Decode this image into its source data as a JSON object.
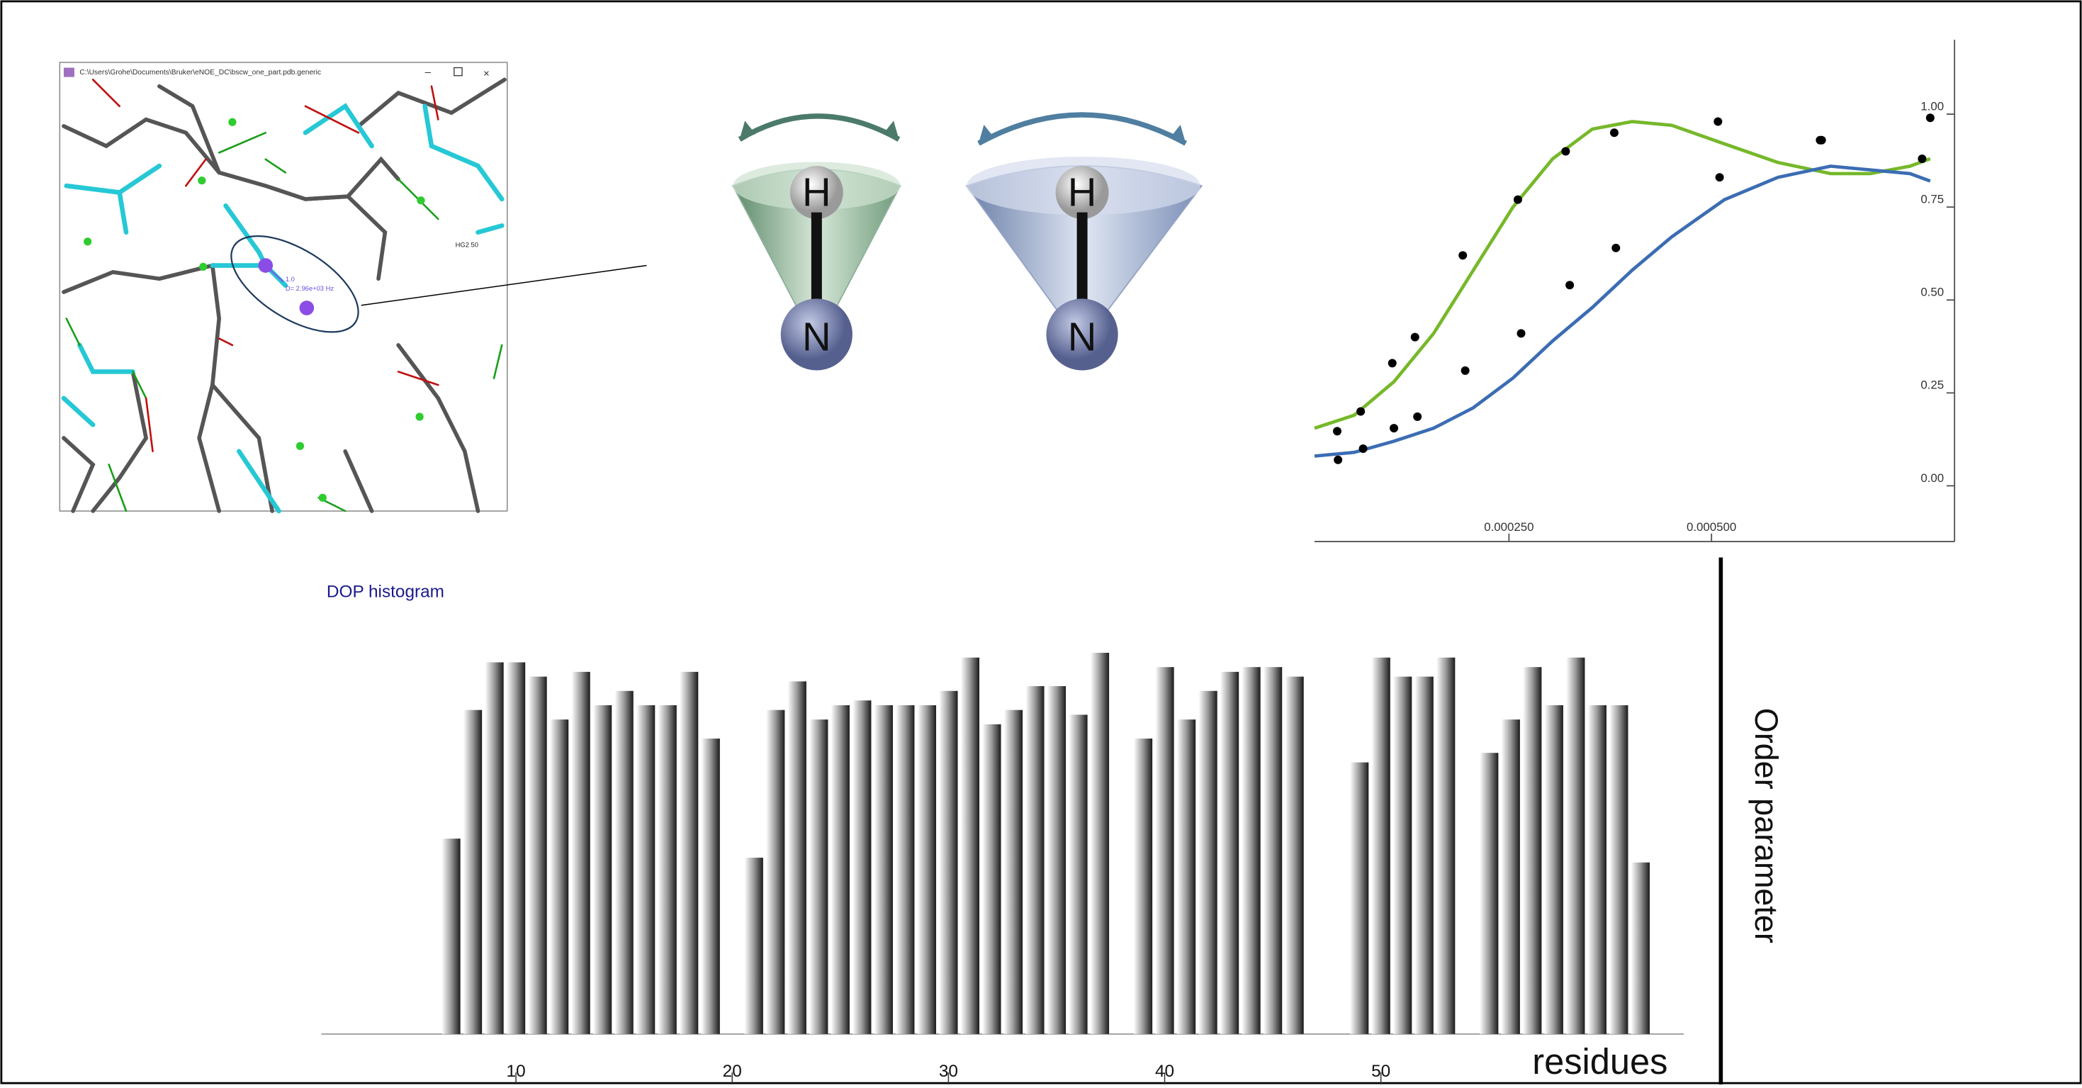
{
  "window": {
    "title": "C:\\Users\\Grohe\\Documents\\Bruker\\eNOE_DC\\bscw_one_part.pdb.generic",
    "labels": [
      "1.0",
      "D= 2.96e+03 Hz",
      "HG2 50"
    ]
  },
  "cones": [
    {
      "top": "H",
      "bottom": "N"
    },
    {
      "top": "H",
      "bottom": "N"
    }
  ],
  "chart_data": [
    {
      "type": "scatter",
      "xlim": [
        1e-05,
        0.0008
      ],
      "ylim": [
        -0.15,
        1.2
      ],
      "xticks": [
        {
          "value": 0.00025,
          "label": "0.000250"
        },
        {
          "value": 0.0005,
          "label": "0.000500"
        }
      ],
      "yticks": [
        {
          "value": 0,
          "label": "0.00"
        },
        {
          "value": 0.25,
          "label": "0.25"
        },
        {
          "value": 0.5,
          "label": "0.50"
        },
        {
          "value": 0.75,
          "label": "0.75"
        },
        {
          "value": 1,
          "label": "1.00"
        }
      ],
      "series": [
        {
          "color": "#000000",
          "x": [
            3.8e-05,
            6.7e-05,
            0.000106,
            0.000134,
            0.000193,
            0.000261,
            0.00032,
            0.00038,
            0.000508,
            0.000634,
            0.00077
          ],
          "values": [
            0.147,
            0.2,
            0.33,
            0.4,
            0.62,
            0.77,
            0.9,
            0.95,
            0.98,
            0.93,
            0.99
          ]
        },
        {
          "color": "#000000",
          "x": [
            3.9e-05,
            7e-05,
            0.000108,
            0.000137,
            0.000196,
            0.000265,
            0.000325,
            0.000382,
            0.00051,
            0.000636,
            0.00076
          ],
          "values": [
            0.07,
            0.1,
            0.155,
            0.186,
            0.31,
            0.41,
            0.54,
            0.64,
            0.83,
            0.93,
            0.88
          ]
        }
      ],
      "lines": [
        {
          "color": "#76b82a",
          "x": [
            1e-05,
            5.9e-05,
            0.000108,
            0.000157,
            0.000206,
            0.000255,
            0.000304,
            0.000353,
            0.000402,
            0.000451,
            0.000516,
            0.000582,
            0.000647,
            0.000696,
            0.000745,
            0.00077
          ],
          "values": [
            0.155,
            0.19,
            0.28,
            0.41,
            0.58,
            0.75,
            0.88,
            0.96,
            0.98,
            0.97,
            0.92,
            0.87,
            0.84,
            0.84,
            0.86,
            0.88
          ]
        },
        {
          "color": "#3b6db3",
          "x": [
            1e-05,
            5.9e-05,
            0.000108,
            0.000157,
            0.000206,
            0.000255,
            0.000304,
            0.000353,
            0.000402,
            0.000451,
            0.000516,
            0.000582,
            0.000647,
            0.000696,
            0.000745,
            0.00077
          ],
          "values": [
            0.08,
            0.09,
            0.12,
            0.155,
            0.21,
            0.29,
            0.39,
            0.48,
            0.58,
            0.67,
            0.77,
            0.83,
            0.86,
            0.85,
            0.84,
            0.82
          ]
        }
      ]
    },
    {
      "type": "bar",
      "title": "DOP histogram",
      "x_label": "residues",
      "y_label": "Order parameter",
      "xlim": [
        1,
        64
      ],
      "ylim": [
        0,
        1
      ],
      "xticks": [
        10,
        20,
        30,
        40,
        50
      ],
      "x": [
        7,
        8,
        9,
        10,
        11,
        12,
        13,
        14,
        15,
        16,
        17,
        18,
        19,
        21,
        22,
        23,
        24,
        25,
        26,
        27,
        28,
        29,
        30,
        31,
        32,
        33,
        34,
        35,
        36,
        37,
        39,
        40,
        41,
        42,
        43,
        44,
        45,
        46,
        49,
        50,
        51,
        52,
        53,
        55,
        56,
        57,
        58,
        59,
        60,
        61,
        62
      ],
      "values": [
        0.41,
        0.68,
        0.78,
        0.78,
        0.75,
        0.66,
        0.76,
        0.69,
        0.72,
        0.69,
        0.69,
        0.76,
        0.62,
        0.37,
        0.68,
        0.74,
        0.66,
        0.69,
        0.7,
        0.69,
        0.69,
        0.69,
        0.72,
        0.79,
        0.65,
        0.68,
        0.73,
        0.73,
        0.67,
        0.8,
        0.62,
        0.77,
        0.66,
        0.72,
        0.76,
        0.77,
        0.77,
        0.75,
        0.57,
        0.79,
        0.75,
        0.75,
        0.79,
        0.59,
        0.66,
        0.77,
        0.69,
        0.79,
        0.69,
        0.69,
        0.36
      ]
    }
  ]
}
